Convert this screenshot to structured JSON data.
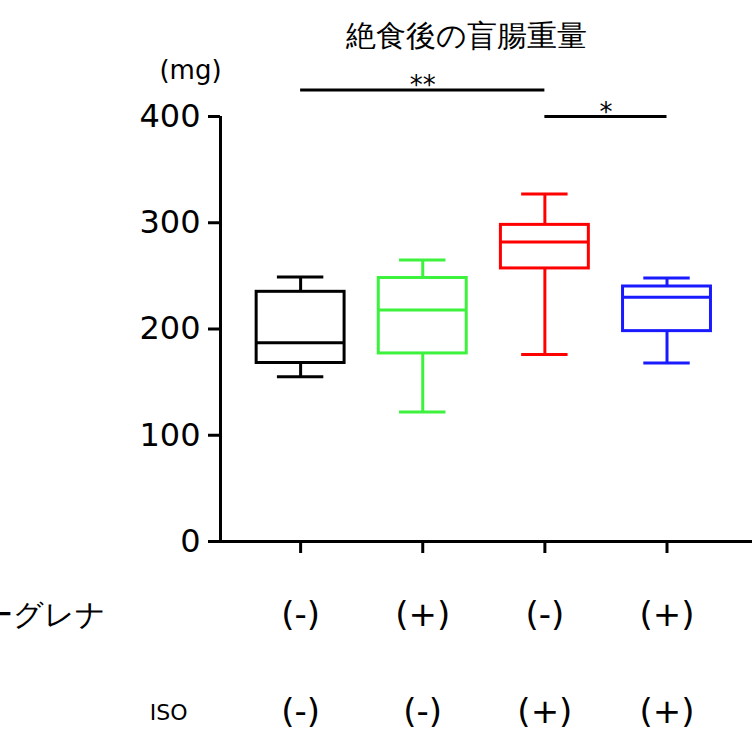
{
  "chart_data": {
    "type": "box",
    "title": "絶食後の盲腸重量",
    "y_label": "(mg)",
    "x_factors": [
      {
        "name": "ユーグレナ",
        "labels": [
          "(-)",
          "(+)",
          "(-)",
          "(+)"
        ]
      },
      {
        "name": "ISO",
        "labels": [
          "(-)",
          "(-)",
          "(+)",
          "(+)"
        ]
      }
    ],
    "boxes": [
      {
        "min": 155,
        "q1": 168,
        "median": 187,
        "q3": 235,
        "max": 249
      },
      {
        "min": 122,
        "q1": 177,
        "median": 218,
        "q3": 248,
        "max": 265
      },
      {
        "min": 176,
        "q1": 257,
        "median": 282,
        "q3": 298,
        "max": 327
      },
      {
        "min": 168,
        "q1": 198,
        "median": 230,
        "q3": 240,
        "max": 248
      }
    ],
    "colors": [
      "#000000",
      "#3cf23c",
      "#ff0000",
      "#1a1aff"
    ],
    "ylim": [
      0,
      400
    ],
    "yticks": [
      0,
      100,
      200,
      300,
      400
    ],
    "grid": false,
    "annotations": [
      {
        "type": "significance",
        "from": 0,
        "to": 2,
        "y": 425,
        "label": "**"
      },
      {
        "type": "significance",
        "from": 2,
        "to": 3,
        "y": 400,
        "label": "*"
      }
    ]
  }
}
